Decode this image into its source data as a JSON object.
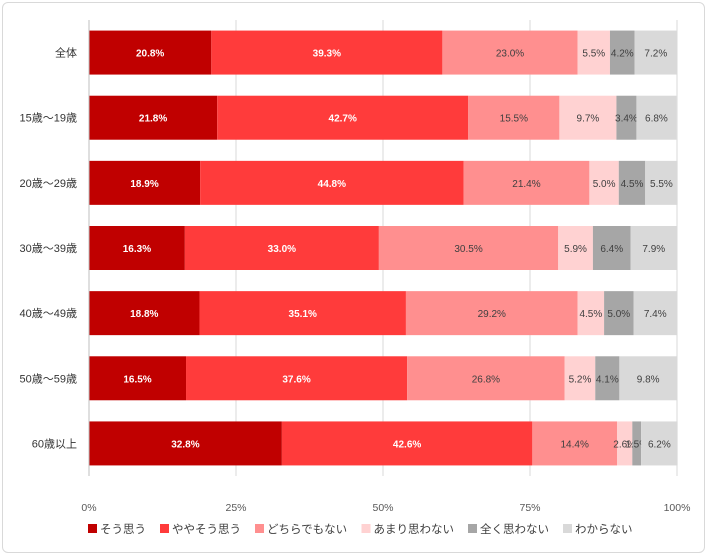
{
  "chart_data": {
    "type": "bar",
    "orientation": "horizontal",
    "stacked": "percent",
    "categories": [
      "全体",
      "15歳～19歳",
      "20歳～29歳",
      "30歳～39歳",
      "40歳～49歳",
      "50歳～59歳",
      "60歳以上"
    ],
    "series": [
      {
        "name": "そう思う",
        "color": "#c00000",
        "values": [
          20.8,
          21.8,
          18.9,
          16.3,
          18.8,
          16.5,
          32.8
        ]
      },
      {
        "name": "ややそう思う",
        "color": "#ff3b3b",
        "values": [
          39.3,
          42.7,
          44.8,
          33.0,
          35.1,
          37.6,
          42.6
        ]
      },
      {
        "name": "どちらでもない",
        "color": "#ff8f8f",
        "values": [
          23.0,
          15.5,
          21.4,
          30.5,
          29.2,
          26.8,
          14.4
        ]
      },
      {
        "name": "あまり思わない",
        "color": "#ffd2d2",
        "values": [
          5.5,
          9.7,
          5.0,
          5.9,
          4.5,
          5.2,
          2.6
        ]
      },
      {
        "name": "全く思わない",
        "color": "#a6a6a6",
        "values": [
          4.2,
          3.4,
          4.5,
          6.4,
          5.0,
          4.1,
          1.5
        ]
      },
      {
        "name": "わからない",
        "color": "#d9d9d9",
        "values": [
          7.2,
          6.8,
          5.5,
          7.9,
          7.4,
          9.8,
          6.2
        ]
      }
    ],
    "label_colors": [
      "#ffffff",
      "#ffffff",
      "#404040",
      "#404040",
      "#404040",
      "#404040"
    ],
    "x_ticks": [
      "0%",
      "25%",
      "50%",
      "75%",
      "100%"
    ],
    "xlim": [
      0,
      100
    ],
    "legend_position": "bottom",
    "grid": true
  }
}
